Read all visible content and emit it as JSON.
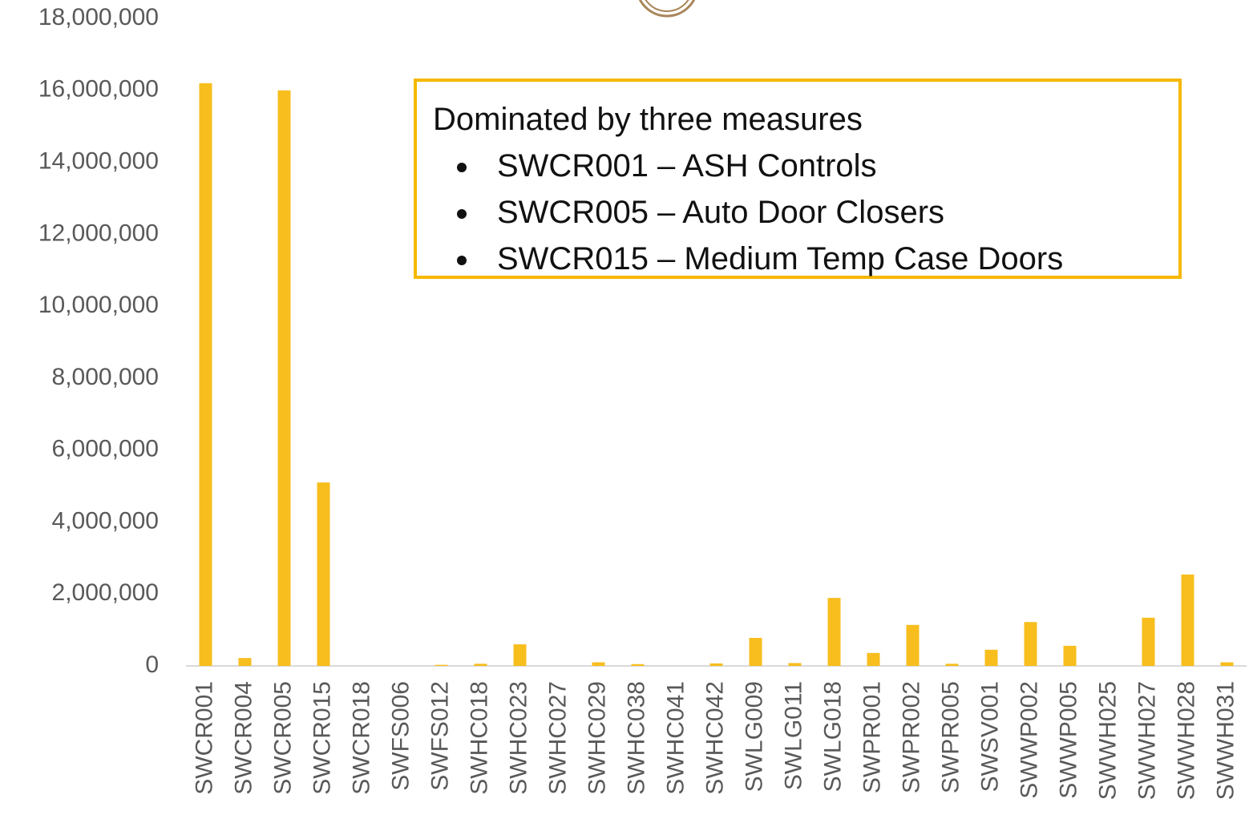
{
  "chart_data": {
    "type": "bar",
    "categories": [
      "SWCR001",
      "SWCR004",
      "SWCR005",
      "SWCR015",
      "SWCR018",
      "SWFS006",
      "SWFS012",
      "SWHC018",
      "SWHC023",
      "SWHC027",
      "SWHC029",
      "SWHC038",
      "SWHC041",
      "SWHC042",
      "SWLG009",
      "SWLG011",
      "SWLG018",
      "SWPR001",
      "SWPR002",
      "SWPR005",
      "SWSV001",
      "SWWP002",
      "SWWP005",
      "SWWH025",
      "SWWH027",
      "SWWH028",
      "SWWH031"
    ],
    "values": [
      16200000,
      220000,
      16000000,
      5100000,
      0,
      0,
      30000,
      60000,
      600000,
      0,
      100000,
      50000,
      0,
      70000,
      780000,
      80000,
      1890000,
      360000,
      1140000,
      60000,
      450000,
      1220000,
      560000,
      0,
      1340000,
      2540000,
      100000
    ],
    "color": "#f7be1e",
    "ylim": [
      0,
      18000000
    ],
    "yticks": [
      {
        "value": 0,
        "label": "0"
      },
      {
        "value": 2000000,
        "label": "2,000,000"
      },
      {
        "value": 4000000,
        "label": "4,000,000"
      },
      {
        "value": 6000000,
        "label": "6,000,000"
      },
      {
        "value": 8000000,
        "label": "8,000,000"
      },
      {
        "value": 10000000,
        "label": "10,000,000"
      },
      {
        "value": 12000000,
        "label": "12,000,000"
      },
      {
        "value": 14000000,
        "label": "14,000,000"
      },
      {
        "value": 16000000,
        "label": "16,000,000"
      },
      {
        "value": 18000000,
        "label": "18,000,000"
      }
    ],
    "grid": false,
    "annotation": {
      "title": "Dominated by three measures",
      "items": [
        "SWCR001 – ASH Controls",
        "SWCR005 – Auto Door Closers",
        "SWCR015 – Medium Temp Case Doors"
      ]
    }
  }
}
